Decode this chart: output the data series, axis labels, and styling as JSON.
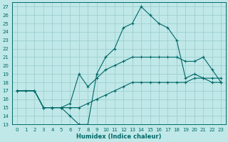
{
  "xlabel": "Humidex (Indice chaleur)",
  "xlim": [
    -0.5,
    23.5
  ],
  "ylim": [
    13,
    27.5
  ],
  "xticks": [
    0,
    1,
    2,
    3,
    4,
    5,
    6,
    7,
    8,
    9,
    10,
    11,
    12,
    13,
    14,
    15,
    16,
    17,
    18,
    19,
    20,
    21,
    22,
    23
  ],
  "yticks": [
    13,
    14,
    15,
    16,
    17,
    18,
    19,
    20,
    21,
    22,
    23,
    24,
    25,
    26,
    27
  ],
  "bg_color": "#c0e8e8",
  "grid_color": "#9ecece",
  "line_color": "#006868",
  "line1_x": [
    0,
    1,
    2,
    3,
    4,
    5,
    6,
    7,
    8,
    9,
    10,
    11,
    12,
    13,
    14,
    15,
    16,
    17,
    18,
    19,
    20,
    21,
    22,
    23
  ],
  "line1_y": [
    17,
    17,
    17,
    15,
    15,
    15,
    14,
    13,
    13,
    19,
    21,
    22,
    24.5,
    25,
    27,
    26,
    25,
    24.5,
    23,
    18.5,
    19,
    18.5,
    18,
    18
  ],
  "line2_x": [
    0,
    2,
    3,
    4,
    5,
    6,
    7,
    8,
    9,
    10,
    11,
    12,
    13,
    14,
    15,
    16,
    17,
    18,
    19,
    20,
    21,
    22,
    23
  ],
  "line2_y": [
    17,
    17,
    15,
    15,
    15,
    15.5,
    19,
    17.5,
    18.5,
    19.5,
    20,
    20.5,
    21,
    21,
    21,
    21,
    21,
    21,
    20.5,
    20.5,
    21,
    19.5,
    18
  ],
  "line3_x": [
    0,
    2,
    3,
    4,
    5,
    6,
    7,
    8,
    9,
    10,
    11,
    12,
    13,
    14,
    15,
    16,
    17,
    18,
    19,
    20,
    21,
    22,
    23
  ],
  "line3_y": [
    17,
    17,
    15,
    15,
    15,
    15,
    15,
    15.5,
    16,
    16.5,
    17,
    17.5,
    18,
    18,
    18,
    18,
    18,
    18,
    18,
    18.5,
    18.5,
    18.5,
    18.5
  ]
}
